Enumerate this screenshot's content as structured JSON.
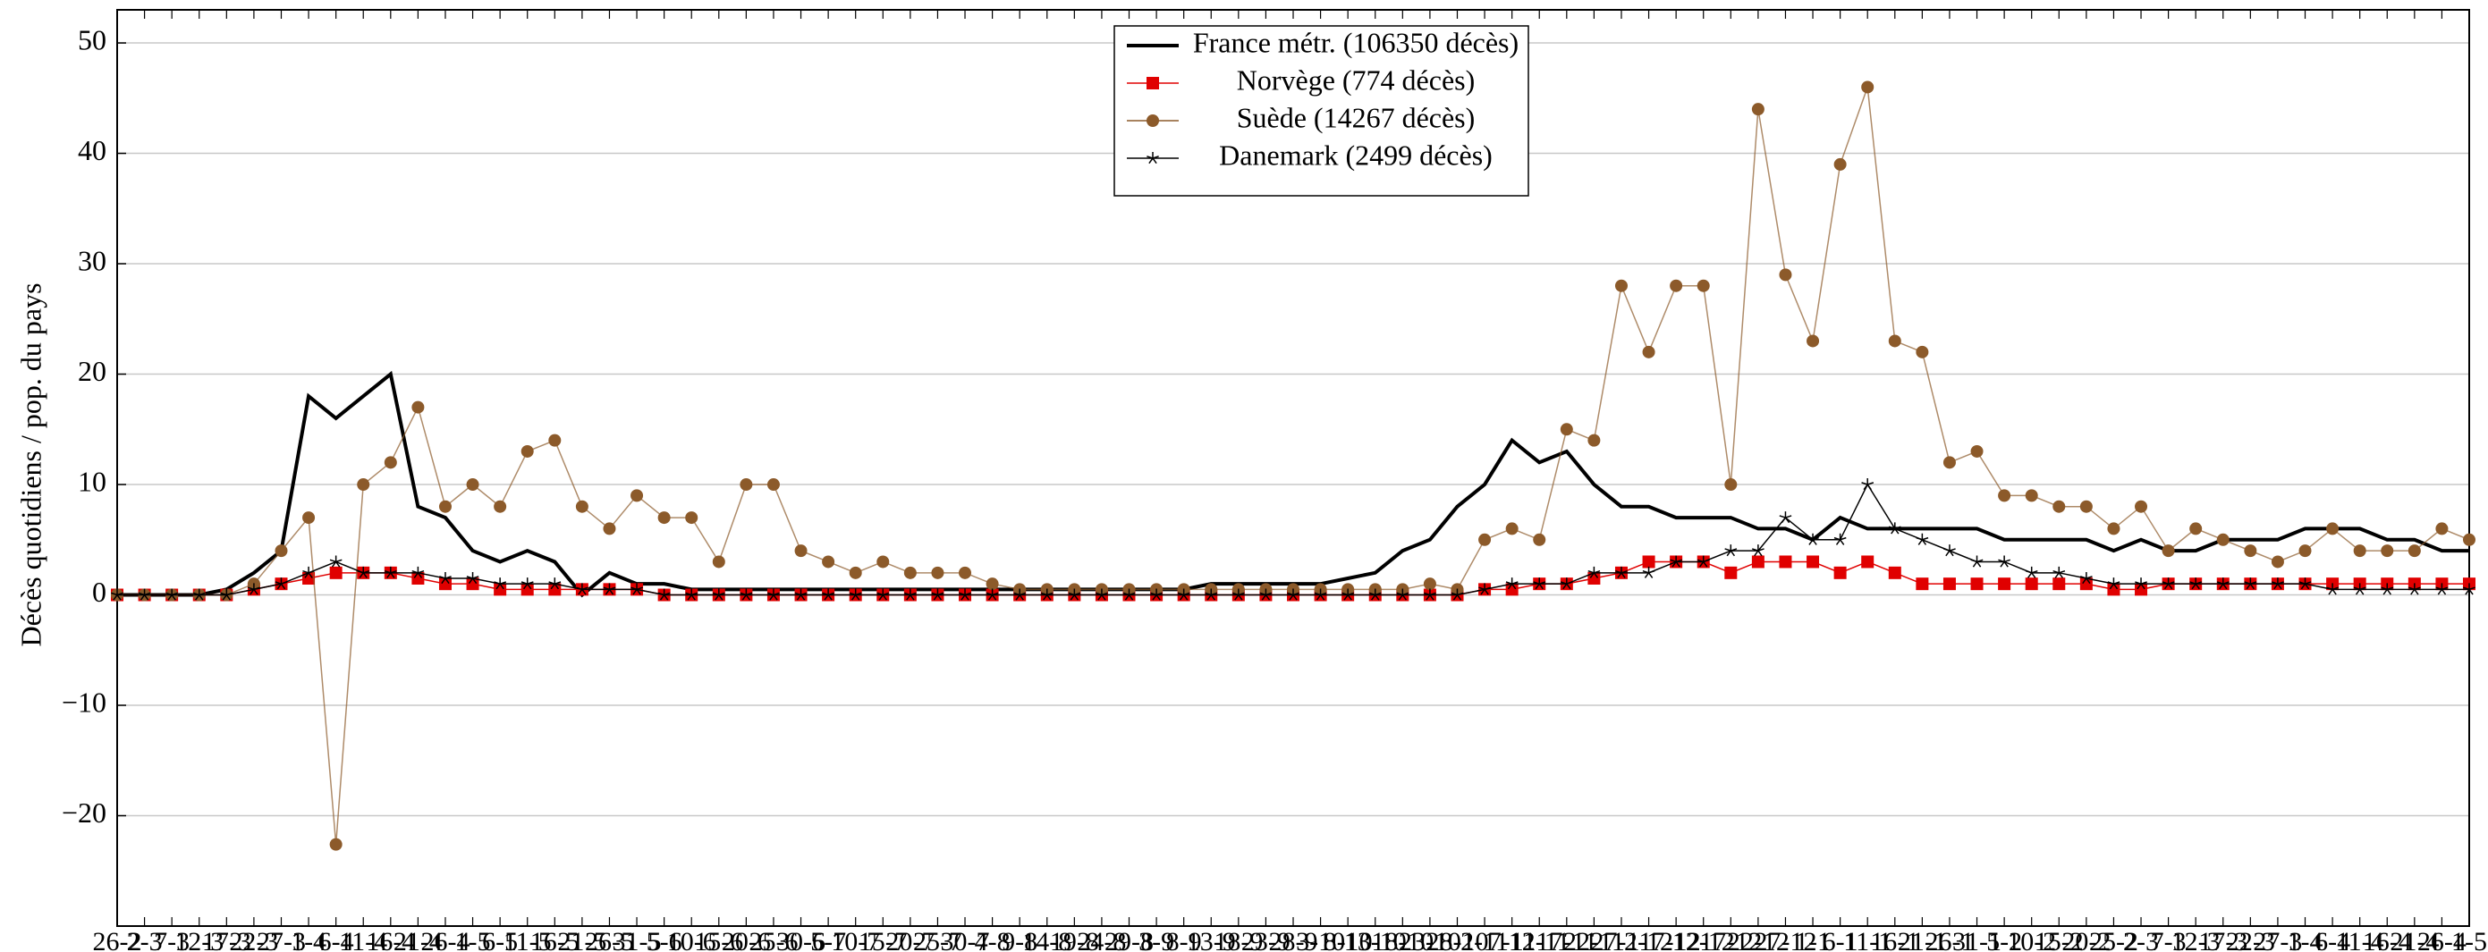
{
  "chart_data": {
    "type": "line",
    "y_label": "Décès quotidiens / pop. du pays",
    "categories": [
      "26-2",
      "2-3",
      "7-3",
      "12-3",
      "17-3",
      "22-3",
      "27-3",
      "1-4",
      "6-4",
      "11-4",
      "16-4",
      "21-4",
      "26-4",
      "1-5",
      "6-5",
      "11-5",
      "16-5",
      "21-5",
      "26-5",
      "31-5",
      "5-6",
      "10-6",
      "15-6",
      "20-6",
      "25-6",
      "30-6",
      "5-7",
      "10-7",
      "15-7",
      "20-7",
      "25-7",
      "30-7",
      "4-8",
      "9-8",
      "14-8",
      "19-8",
      "24-8",
      "29-8",
      "3-9",
      "8-9",
      "13-9",
      "18-9",
      "23-9",
      "28-9",
      "3-10",
      "8-10",
      "13-10",
      "18-10",
      "23-10",
      "28-10",
      "2-11",
      "7-11",
      "12-11",
      "17-11",
      "22-11",
      "27-11",
      "2-12",
      "7-12",
      "12-12",
      "17-12",
      "22-12",
      "27-12",
      "1-1",
      "6-1",
      "11-1",
      "16-1",
      "21-1",
      "26-1",
      "31-1",
      "5-2",
      "10-2",
      "15-2",
      "20-2",
      "25-2",
      "2-3",
      "7-3",
      "12-3",
      "17-3",
      "22-3",
      "27-3",
      "1-4",
      "6-4",
      "11-4",
      "16-4",
      "21-4",
      "26-4",
      "1-5"
    ],
    "series": [
      {
        "name": "France métr. (106350 décès)",
        "color": "#000000",
        "marker": "none",
        "values": [
          0,
          0,
          0,
          0,
          0.5,
          2,
          4,
          18,
          16,
          18,
          20,
          8,
          7,
          4,
          3,
          4,
          3,
          0,
          2,
          1,
          1,
          0.5,
          0.5,
          0.5,
          0.5,
          0.5,
          0.5,
          0.5,
          0.5,
          0.5,
          0.5,
          0.5,
          0.5,
          0.5,
          0.5,
          0.5,
          0.5,
          0.5,
          0.5,
          0.5,
          1,
          1,
          1,
          1,
          1,
          1.5,
          2,
          4,
          5,
          8,
          10,
          14,
          12,
          13,
          10,
          8,
          8,
          7,
          7,
          7,
          6,
          6,
          5,
          7,
          6,
          6,
          6,
          6,
          6,
          5,
          5,
          5,
          5,
          4,
          5,
          4,
          4,
          5,
          5,
          5,
          6,
          6,
          6,
          5,
          5,
          4,
          4
        ]
      },
      {
        "name": "Norvège (774 décès)",
        "color": "#e00000",
        "marker": "square",
        "values": [
          0,
          0,
          0,
          0,
          0,
          0.5,
          1,
          1.5,
          2,
          2,
          2,
          1.5,
          1,
          1,
          0.5,
          0.5,
          0.5,
          0.5,
          0.5,
          0.5,
          0,
          0,
          0,
          0,
          0,
          0,
          0,
          0,
          0,
          0,
          0,
          0,
          0,
          0,
          0,
          0,
          0,
          0,
          0,
          0,
          0,
          0,
          0,
          0,
          0,
          0,
          0,
          0,
          0,
          0,
          0.5,
          0.5,
          1,
          1,
          1.5,
          2,
          3,
          3,
          3,
          2,
          3,
          3,
          3,
          2,
          3,
          2,
          1,
          1,
          1,
          1,
          1,
          1,
          1,
          0.5,
          0.5,
          1,
          1,
          1,
          1,
          1,
          1,
          1,
          1,
          1,
          1,
          1,
          1
        ]
      },
      {
        "name": "Suède (14267 décès)",
        "color": "#8c5a2a",
        "marker": "circle",
        "values": [
          0,
          0,
          0,
          0,
          0,
          1,
          4,
          7,
          -22.6,
          10,
          12,
          17,
          8,
          10,
          8,
          13,
          14,
          8,
          6,
          9,
          7,
          7,
          3,
          10,
          10,
          4,
          3,
          2,
          3,
          2,
          2,
          2,
          1,
          0.5,
          0.5,
          0.5,
          0.5,
          0.5,
          0.5,
          0.5,
          0.5,
          0.5,
          0.5,
          0.5,
          0.5,
          0.5,
          0.5,
          0.5,
          1,
          0.5,
          5,
          6,
          5,
          15,
          14,
          28,
          22,
          28,
          28,
          10,
          44,
          29,
          23,
          39,
          46,
          23,
          22,
          12,
          13,
          9,
          9,
          8,
          8,
          6,
          8,
          4,
          6,
          5,
          4,
          3,
          4,
          6,
          4,
          4,
          4,
          6,
          5
        ]
      },
      {
        "name": "Danemark (2499 décès)",
        "color": "#000000",
        "marker": "star",
        "values": [
          0,
          0,
          0,
          0,
          0,
          0.5,
          1,
          2,
          3,
          2,
          2,
          2,
          1.5,
          1.5,
          1,
          1,
          1,
          0.5,
          0.5,
          0.5,
          0,
          0,
          0,
          0,
          0,
          0,
          0,
          0,
          0,
          0,
          0,
          0,
          0,
          0,
          0,
          0,
          0,
          0,
          0,
          0,
          0,
          0,
          0,
          0,
          0,
          0,
          0,
          0,
          0,
          0,
          0.5,
          1,
          1,
          1,
          2,
          2,
          2,
          3,
          3,
          4,
          4,
          7,
          5,
          5,
          10,
          6,
          5,
          4,
          3,
          3,
          2,
          2,
          1.5,
          1,
          1,
          1,
          1,
          1,
          1,
          1,
          1,
          0.5,
          0.5,
          0.5,
          0.5,
          0.5,
          0.5
        ]
      }
    ],
    "ylim": [
      -30,
      53
    ],
    "yticks": [
      {
        "value": -20,
        "label": "−20"
      },
      {
        "value": -10,
        "label": "−10"
      },
      0,
      10,
      20,
      30,
      40,
      50
    ],
    "grid": true,
    "legend": "top"
  }
}
